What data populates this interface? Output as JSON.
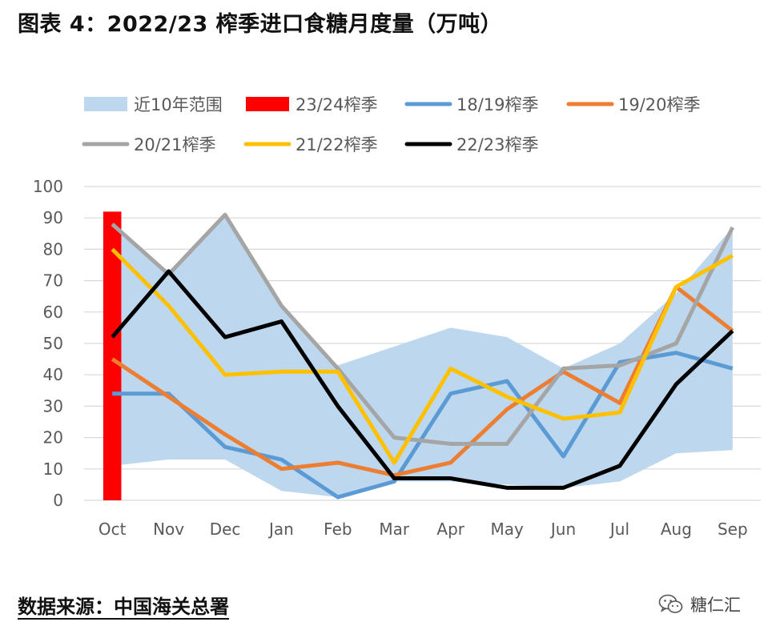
{
  "figure_title": "图表 4：2022/23 榨季进口食糖月度量（万吨）",
  "source_note": "数据来源：中国海关总署",
  "watermark": {
    "text": "糖仁汇",
    "icon": "wechat-logo-icon"
  },
  "chart_data": {
    "type": "line",
    "title": "",
    "xlabel": "",
    "ylabel": "",
    "ylim": [
      0,
      100
    ],
    "yticks": [
      0,
      10,
      20,
      30,
      40,
      50,
      60,
      70,
      80,
      90,
      100
    ],
    "grid": true,
    "legend_position": "top",
    "categories": [
      "Oct",
      "Nov",
      "Dec",
      "Jan",
      "Feb",
      "Mar",
      "Apr",
      "May",
      "Jun",
      "Jul",
      "Aug",
      "Sep"
    ],
    "range_band": {
      "name": "近10年范围",
      "color": "#bdd7ee",
      "upper": [
        88,
        72,
        91,
        62,
        43,
        49,
        55,
        52,
        42,
        50,
        66,
        87
      ],
      "lower": [
        11,
        13,
        13,
        3,
        1,
        6,
        6,
        5,
        4,
        6,
        15,
        16
      ]
    },
    "bar": {
      "name": "23/24榨季",
      "color": "#ff0000",
      "category": "Oct",
      "value": 92
    },
    "series": [
      {
        "name": "18/19榨季",
        "color": "#5b9bd5",
        "values": [
          34,
          34,
          17,
          13,
          1,
          6,
          34,
          38,
          14,
          44,
          47,
          42
        ]
      },
      {
        "name": "19/20榨季",
        "color": "#ed7d31",
        "values": [
          45,
          33,
          21,
          10,
          12,
          8,
          12,
          29,
          41,
          31,
          68,
          54
        ]
      },
      {
        "name": "20/21榨季",
        "color": "#a5a5a5",
        "values": [
          88,
          72,
          91,
          62,
          42,
          20,
          18,
          18,
          42,
          43,
          50,
          87
        ]
      },
      {
        "name": "21/22榨季",
        "color": "#ffc000",
        "values": [
          80,
          62,
          40,
          41,
          41,
          12,
          42,
          33,
          26,
          28,
          68,
          78
        ]
      },
      {
        "name": "22/23榨季",
        "color": "#000000",
        "values": [
          52,
          73,
          52,
          57,
          30,
          7,
          7,
          4,
          4,
          11,
          37,
          54
        ]
      }
    ]
  }
}
